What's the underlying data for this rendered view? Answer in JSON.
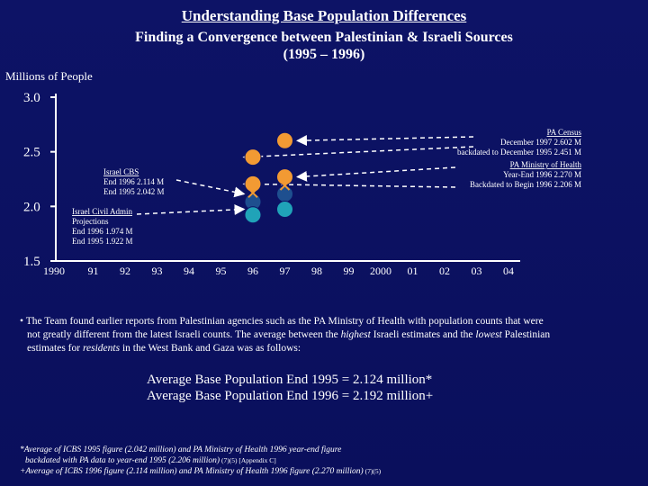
{
  "title": "Understanding Base Population Differences",
  "subtitle_line1": "Finding a Convergence between Palestinian & Israeli Sources",
  "subtitle_line2": "(1995 – 1996)",
  "bullet": {
    "line1": "• The Team found earlier reports from Palestinian agencies such as the PA Ministry of Health with population counts that were",
    "line2a": "not greatly different from the latest Israeli counts.  The average between the ",
    "line2_em1": "highest",
    "line2b": " Israeli estimates and the ",
    "line2_em2": "lowest",
    "line2c": " Palestinian",
    "line3a": "estimates for ",
    "line3_em": "residents",
    "line3b": " in the West Bank and Gaza was as follows:"
  },
  "averages": {
    "line1": "Average Base Population End 1995 = 2.124 million*",
    "line2": "Average Base Population End 1996 = 2.192 million+"
  },
  "footnotes": {
    "line1": "*Average of ICBS 1995 figure (2.042 million) and PA Ministry of Health 1996 year-end figure",
    "line2": "backdated with PA data to year-end 1995 (2.206 million)",
    "line2_ref": " (7)(5) [Appendix C]",
    "line3": "+Average of ICBS 1996 figure (2.114 million) and PA Ministry of Health 1996 figure (2.270 million)",
    "line3_ref": " (7)(5)"
  },
  "colors": {
    "background": "#0d1366",
    "orange": "#f29a33",
    "teal": "#20a3b8",
    "navy": "#1e4f8f",
    "axis": "#ffffff"
  },
  "chart_data": {
    "type": "scatter",
    "ylabel": "Millions of People",
    "xlabel": "",
    "ylim": [
      1.5,
      3.0
    ],
    "y_ticks": [
      "1.5",
      "2.0",
      "2.5",
      "3.0"
    ],
    "x_ticks": [
      "1990",
      "91",
      "92",
      "93",
      "94",
      "95",
      "96",
      "97",
      "98",
      "99",
      "2000",
      "01",
      "02",
      "03",
      "04"
    ],
    "points": [
      {
        "name": "PA Census Dec 1997",
        "x": 1997,
        "y": 2.602,
        "color": "orange",
        "marker": "circle"
      },
      {
        "name": "PA census backdated Dec 1995",
        "x": 1996,
        "y": 2.451,
        "color": "orange",
        "marker": "circle"
      },
      {
        "name": "PA Ministry of Health Year-End 1996",
        "x": 1997,
        "y": 2.27,
        "color": "orange",
        "marker": "circle"
      },
      {
        "name": "PA MoH backdated Begin 1996",
        "x": 1996,
        "y": 2.206,
        "color": "orange",
        "marker": "circle"
      },
      {
        "name": "Israel CBS End 1996",
        "x": 1997,
        "y": 2.114,
        "color": "navy",
        "marker": "circle"
      },
      {
        "name": "Israel CBS End 1995",
        "x": 1996,
        "y": 2.042,
        "color": "navy",
        "marker": "circle"
      },
      {
        "name": "Israel Civil Admin End 1996",
        "x": 1997,
        "y": 1.974,
        "color": "teal",
        "marker": "circle"
      },
      {
        "name": "Israel Civil Admin End 1995",
        "x": 1996,
        "y": 1.922,
        "color": "teal",
        "marker": "circle"
      },
      {
        "name": "Average End 1995",
        "x": 1996,
        "y": 2.124,
        "color": "orange",
        "marker": "x"
      },
      {
        "name": "Average End 1996",
        "x": 1997,
        "y": 2.192,
        "color": "orange",
        "marker": "x"
      }
    ],
    "annotations": {
      "pa_census": [
        "PA Census",
        "December 1997  2.602 M",
        "backdated to December 1995 2.451 M"
      ],
      "pa_moh": [
        "PA Ministry of Health",
        "Year-End 1996  2.270 M",
        "Backdated to Begin 1996 2.206 M"
      ],
      "israel_cbs": [
        "Israel CBS",
        "End 1996   2.114 M",
        "End 1995   2.042 M"
      ],
      "israel_civil": [
        "Israel Civil Admin",
        "Projections",
        "End 1996   1.974 M",
        "End 1995   1.922 M"
      ]
    }
  }
}
